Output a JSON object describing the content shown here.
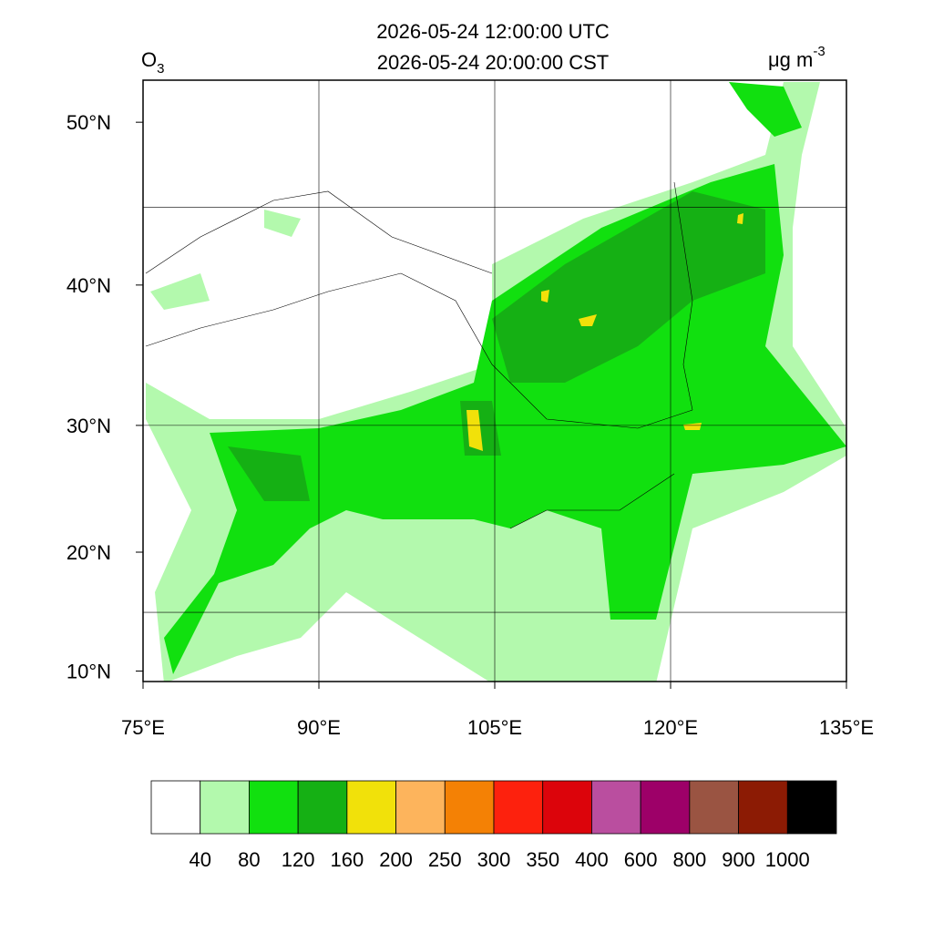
{
  "header": {
    "title_lines": [
      "2026-05-24 12:00:00 UTC",
      "2026-05-24 20:00:00 CST"
    ],
    "variable": {
      "base": "O",
      "sub": "3"
    },
    "units": {
      "base": "μg m",
      "sup": "-3"
    }
  },
  "map": {
    "xlim": [
      75,
      135
    ],
    "ylim": [
      9.1,
      52.3
    ],
    "projection": "mercator",
    "xticks": [
      {
        "value": 75,
        "label": "75°E"
      },
      {
        "value": 90,
        "label": "90°E"
      },
      {
        "value": 105,
        "label": "105°E"
      },
      {
        "value": 120,
        "label": "120°E"
      },
      {
        "value": 135,
        "label": "135°E"
      }
    ],
    "yticks": [
      {
        "value": 10,
        "label": "10°N"
      },
      {
        "value": 20,
        "label": "20°N"
      },
      {
        "value": 30,
        "label": "30°N"
      },
      {
        "value": 40,
        "label": "40°N"
      },
      {
        "value": 50,
        "label": "50°N"
      }
    ],
    "grid_lon": [
      90,
      105,
      120
    ],
    "grid_lat": [
      15,
      30,
      45
    ]
  },
  "colorbar": {
    "levels": [
      40,
      80,
      120,
      160,
      200,
      250,
      300,
      350,
      400,
      600,
      800,
      900,
      1000
    ],
    "colors": [
      "#ffffff",
      "#b3f9ad",
      "#11e00f",
      "#15b014",
      "#f1e10a",
      "#fdb45c",
      "#f48105",
      "#fd210d",
      "#dc040b",
      "#ba4e9f",
      "#9d0068",
      "#9a5442",
      "#8c1b04",
      "#000000"
    ]
  }
}
